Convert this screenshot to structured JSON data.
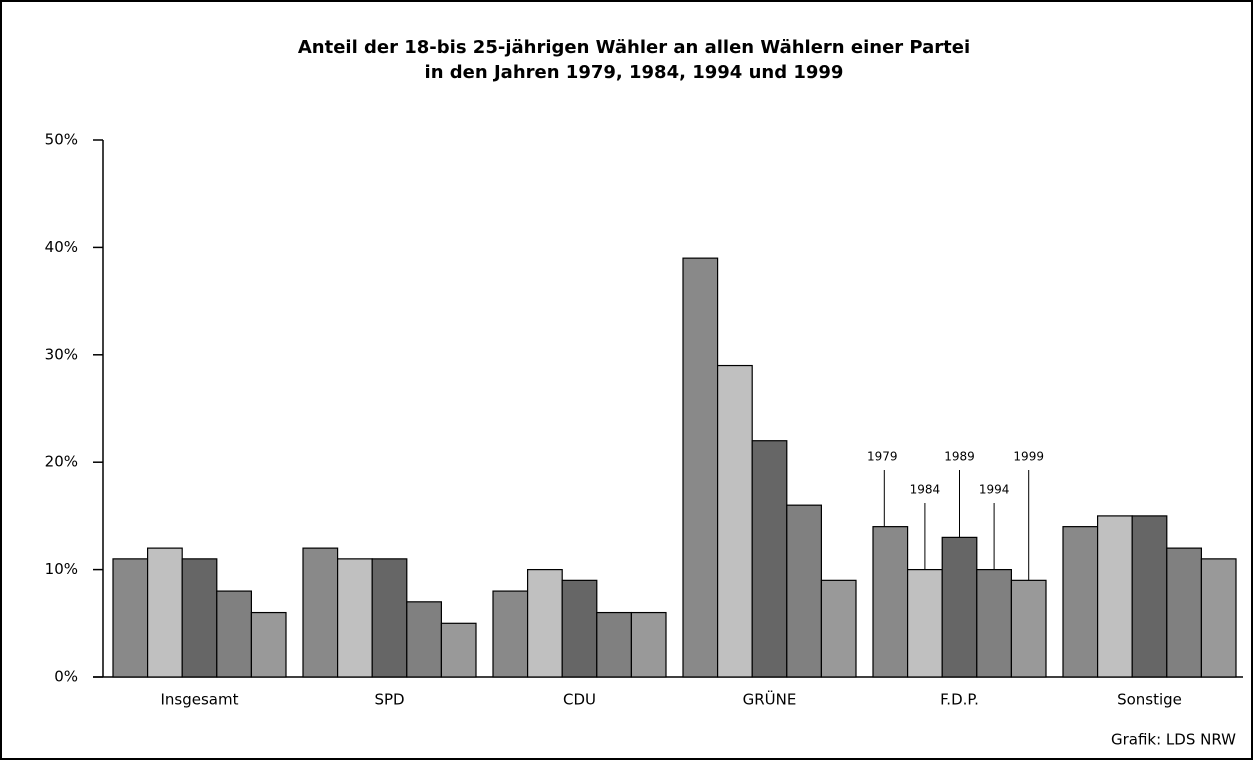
{
  "chart_data": {
    "type": "bar",
    "title": "Anteil der 18-bis 25-jährigen Wähler an allen Wählern einer Partei",
    "subtitle": "in den Jahren 1979, 1984, 1994 und 1999",
    "categories": [
      "Insgesamt",
      "SPD",
      "CDU",
      "GRÜNE",
      "F.D.P.",
      "Sonstige"
    ],
    "series": [
      {
        "name": "1979",
        "color": "#898989",
        "values": [
          11,
          12,
          8,
          39,
          14,
          14
        ]
      },
      {
        "name": "1984",
        "color": "#c0c0c0",
        "values": [
          12,
          11,
          10,
          29,
          10,
          15
        ]
      },
      {
        "name": "1989",
        "color": "#666666",
        "values": [
          11,
          11,
          9,
          22,
          13,
          15
        ]
      },
      {
        "name": "1994",
        "color": "#808080",
        "values": [
          8,
          7,
          6,
          16,
          10,
          12
        ]
      },
      {
        "name": "1999",
        "color": "#999999",
        "values": [
          6,
          5,
          6,
          9,
          9,
          11
        ]
      }
    ],
    "ylim": [
      0,
      50
    ],
    "yticks": [
      {
        "value": 0,
        "label": "0%"
      },
      {
        "value": 10,
        "label": "10%"
      },
      {
        "value": 20,
        "label": "20%"
      },
      {
        "value": 30,
        "label": "30%"
      },
      {
        "value": 40,
        "label": "40%"
      },
      {
        "value": 50,
        "label": "50%"
      }
    ],
    "source": "Grafik: LDS NRW"
  }
}
